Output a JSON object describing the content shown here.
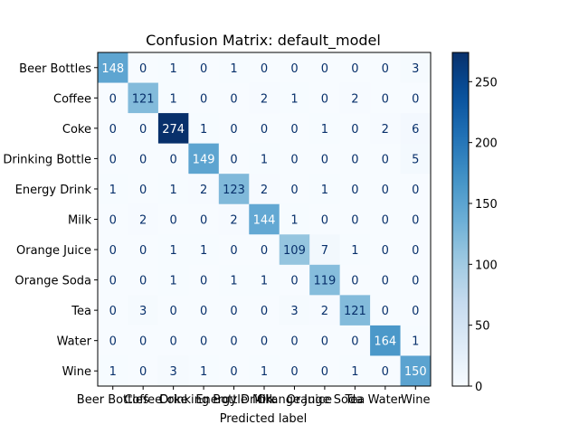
{
  "chart_data": {
    "type": "heatmap",
    "title": "Confusion Matrix: default_model",
    "xlabel": "Predicted label",
    "ylabel": "",
    "labels": [
      "Beer Bottles",
      "Coffee",
      "Coke",
      "Drinking Bottle",
      "Energy Drink",
      "Milk",
      "Orange Juice",
      "Orange Soda",
      "Tea",
      "Water",
      "Wine"
    ],
    "matrix": [
      [
        148,
        0,
        1,
        0,
        1,
        0,
        0,
        0,
        0,
        0,
        3
      ],
      [
        0,
        121,
        1,
        0,
        0,
        2,
        1,
        0,
        2,
        0,
        0
      ],
      [
        0,
        0,
        274,
        1,
        0,
        0,
        0,
        1,
        0,
        2,
        6
      ],
      [
        0,
        0,
        0,
        149,
        0,
        1,
        0,
        0,
        0,
        0,
        5
      ],
      [
        1,
        0,
        1,
        2,
        123,
        2,
        0,
        1,
        0,
        0,
        0
      ],
      [
        0,
        2,
        0,
        0,
        2,
        144,
        1,
        0,
        0,
        0,
        0
      ],
      [
        0,
        0,
        1,
        1,
        0,
        0,
        109,
        7,
        1,
        0,
        0
      ],
      [
        0,
        0,
        1,
        0,
        1,
        1,
        0,
        119,
        0,
        0,
        0
      ],
      [
        0,
        3,
        0,
        0,
        0,
        0,
        3,
        2,
        121,
        0,
        0
      ],
      [
        0,
        0,
        0,
        0,
        0,
        0,
        0,
        0,
        0,
        164,
        1
      ],
      [
        1,
        0,
        3,
        1,
        0,
        1,
        0,
        0,
        1,
        0,
        150
      ]
    ],
    "colormap": "Blues",
    "colorbar": {
      "vmin": 0,
      "vmax": 274,
      "ticks": [
        0,
        50,
        100,
        150,
        200,
        250
      ]
    },
    "grid": false
  }
}
